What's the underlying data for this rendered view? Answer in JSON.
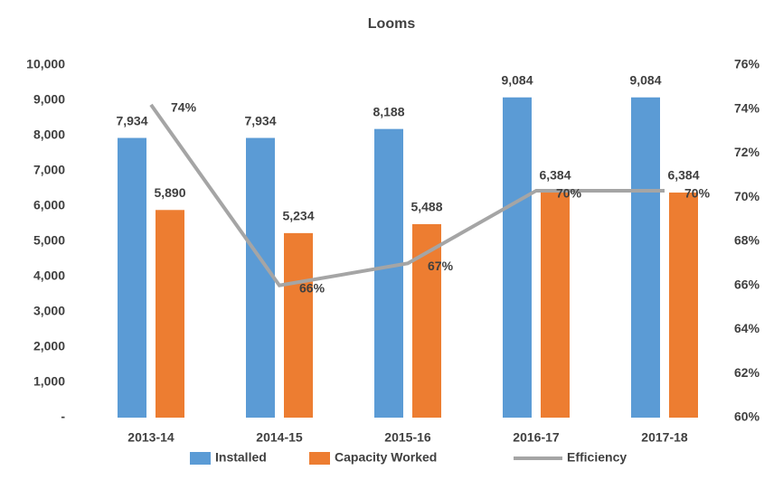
{
  "chart_data": {
    "type": "bar",
    "title": "Looms",
    "categories": [
      "2013-14",
      "2014-15",
      "2015-16",
      "2016-17",
      "2017-18"
    ],
    "series": [
      {
        "name": "Installed",
        "type": "bar",
        "color": "#5b9bd5",
        "values": [
          7934,
          7934,
          8188,
          9084,
          9084
        ],
        "value_labels": [
          "7,934",
          "7,934",
          "8,188",
          "9,084",
          "9,084"
        ]
      },
      {
        "name": "Capacity Worked",
        "type": "bar",
        "color": "#ed7d31",
        "values": [
          5890,
          5234,
          5488,
          6384,
          6384
        ],
        "value_labels": [
          "5,890",
          "5,234",
          "5,488",
          "6,384",
          "6,384"
        ]
      },
      {
        "name": "Efficiency",
        "type": "line",
        "axis": "y2",
        "color": "#a5a5a5",
        "values": [
          74.2,
          66.0,
          67.0,
          70.3,
          70.3
        ],
        "value_labels": [
          "74%",
          "66%",
          "67%",
          "70%",
          "70%"
        ]
      }
    ],
    "ylim": [
      0,
      10000
    ],
    "yticks": [
      {
        "value": 0,
        "label": "-"
      },
      {
        "value": 1000,
        "label": "1,000"
      },
      {
        "value": 2000,
        "label": "2,000"
      },
      {
        "value": 3000,
        "label": "3,000"
      },
      {
        "value": 4000,
        "label": "4,000"
      },
      {
        "value": 5000,
        "label": "5,000"
      },
      {
        "value": 6000,
        "label": "6,000"
      },
      {
        "value": 7000,
        "label": "7,000"
      },
      {
        "value": 8000,
        "label": "8,000"
      },
      {
        "value": 9000,
        "label": "9,000"
      },
      {
        "value": 10000,
        "label": "10,000"
      }
    ],
    "y2lim": [
      60,
      76
    ],
    "y2ticks": [
      {
        "value": 60,
        "label": "60%"
      },
      {
        "value": 62,
        "label": "62%"
      },
      {
        "value": 64,
        "label": "64%"
      },
      {
        "value": 66,
        "label": "66%"
      },
      {
        "value": 68,
        "label": "68%"
      },
      {
        "value": 70,
        "label": "70%"
      },
      {
        "value": 72,
        "label": "72%"
      },
      {
        "value": 74,
        "label": "74%"
      },
      {
        "value": 76,
        "label": "76%"
      }
    ],
    "grid": false,
    "legend": "bottom"
  }
}
